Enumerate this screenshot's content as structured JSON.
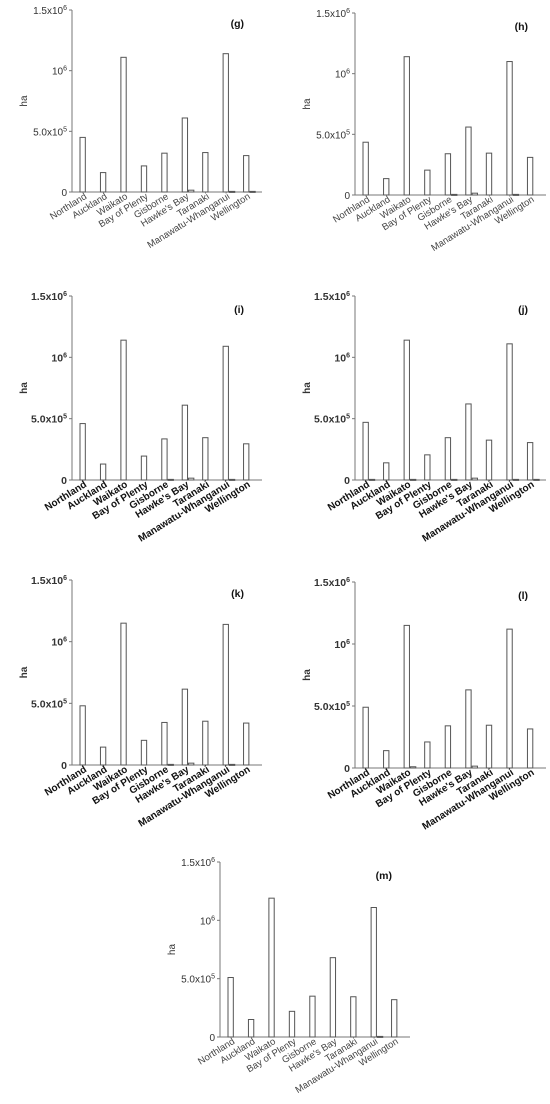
{
  "chart_data": [
    {
      "panel": "(g)",
      "type": "bar",
      "ylabel": "ha",
      "categories": [
        "Northland",
        "Auckland",
        "Waikato",
        "Bay of Plenty",
        "Gisborne",
        "Hawke's Bay",
        "Taranaki",
        "Manawatu-Whanganui",
        "Wellington"
      ],
      "yticks": [
        "0",
        "5.0x10",
        "10",
        "1.5x10"
      ],
      "ytick_sup": [
        "",
        "5",
        "6",
        "6"
      ],
      "ylim": [
        0,
        1500000
      ],
      "series": [
        {
          "values": [
            450000,
            160000,
            1110000,
            215000,
            320000,
            610000,
            325000,
            1140000,
            300000
          ]
        },
        {
          "values": [
            0,
            0,
            0,
            0,
            0,
            15000,
            0,
            5000,
            5000
          ]
        }
      ]
    },
    {
      "panel": "(h)",
      "type": "bar",
      "ylabel": "ha",
      "categories": [
        "Northland",
        "Auckland",
        "Waikato",
        "Bay of Plenty",
        "Gisborne",
        "Hawke's Bay",
        "Taranaki",
        "Manawatu-Whanganui",
        "Wellington"
      ],
      "yticks": [
        "0",
        "5.0x10",
        "10",
        "1.5x10"
      ],
      "ytick_sup": [
        "",
        "5",
        "6",
        "6"
      ],
      "ylim": [
        0,
        1500000
      ],
      "series": [
        {
          "values": [
            435000,
            135000,
            1140000,
            205000,
            340000,
            560000,
            345000,
            1100000,
            310000
          ]
        },
        {
          "values": [
            0,
            0,
            0,
            0,
            5000,
            15000,
            0,
            5000,
            0
          ]
        }
      ]
    },
    {
      "panel": "(i)",
      "type": "bar",
      "ylabel": "ha",
      "categories": [
        "Northland",
        "Auckland",
        "Waikato",
        "Bay of Plenty",
        "Gisborne",
        "Hawke's Bay",
        "Taranaki",
        "Manawatu-Whanganui",
        "Wellington"
      ],
      "yticks": [
        "0",
        "5.0x10",
        "10",
        "1.5x10"
      ],
      "ytick_sup": [
        "",
        "5",
        "6",
        "6"
      ],
      "ylim": [
        0,
        1500000
      ],
      "series": [
        {
          "values": [
            460000,
            130000,
            1140000,
            195000,
            335000,
            610000,
            345000,
            1090000,
            295000
          ]
        },
        {
          "values": [
            0,
            0,
            0,
            0,
            5000,
            15000,
            0,
            5000,
            0
          ]
        }
      ]
    },
    {
      "panel": "(j)",
      "type": "bar",
      "ylabel": "ha",
      "categories": [
        "Northland",
        "Auckland",
        "Waikato",
        "Bay of Plenty",
        "Gisborne",
        "Hawke's Bay",
        "Taranaki",
        "Manawatu-Whanganui",
        "Wellington"
      ],
      "yticks": [
        "0",
        "5.0x10",
        "10",
        "1.5x10"
      ],
      "ytick_sup": [
        "",
        "5",
        "6",
        "6"
      ],
      "ylim": [
        0,
        1500000
      ],
      "series": [
        {
          "values": [
            470000,
            140000,
            1140000,
            205000,
            345000,
            620000,
            325000,
            1110000,
            305000
          ]
        },
        {
          "values": [
            5000,
            0,
            5000,
            0,
            5000,
            15000,
            0,
            5000,
            5000
          ]
        }
      ]
    },
    {
      "panel": "(k)",
      "type": "bar",
      "ylabel": "ha",
      "categories": [
        "Northland",
        "Auckland",
        "Waikato",
        "Bay of Plenty",
        "Gisborne",
        "Hawke's Bay",
        "Taranaki",
        "Manawatu-Whanganui",
        "Wellington"
      ],
      "yticks": [
        "0",
        "5.0x10",
        "10",
        "1.5x10"
      ],
      "ytick_sup": [
        "",
        "5",
        "6",
        "6"
      ],
      "ylim": [
        0,
        1500000
      ],
      "series": [
        {
          "values": [
            480000,
            145000,
            1150000,
            200000,
            345000,
            615000,
            355000,
            1140000,
            340000
          ]
        },
        {
          "values": [
            0,
            0,
            0,
            0,
            5000,
            15000,
            0,
            5000,
            0
          ]
        }
      ]
    },
    {
      "panel": "(l)",
      "type": "bar",
      "ylabel": "ha",
      "categories": [
        "Northland",
        "Auckland",
        "Waikato",
        "Bay of Plenty",
        "Gisborne",
        "Hawke's Bay",
        "Taranaki",
        "Manawatu-Whanganui",
        "Wellington"
      ],
      "yticks": [
        "0",
        "5.0x10",
        "10",
        "1.5x10"
      ],
      "ytick_sup": [
        "",
        "5",
        "6",
        "6"
      ],
      "ylim": [
        0,
        1500000
      ],
      "series": [
        {
          "values": [
            490000,
            140000,
            1150000,
            210000,
            340000,
            630000,
            345000,
            1120000,
            315000
          ]
        },
        {
          "values": [
            0,
            0,
            10000,
            0,
            0,
            15000,
            0,
            0,
            0
          ]
        }
      ]
    },
    {
      "panel": "(m)",
      "type": "bar",
      "ylabel": "ha",
      "categories": [
        "Northland",
        "Auckland",
        "Waikato",
        "Bay of Plenty",
        "Gisborne",
        "Hawke's Bay",
        "Taranaki",
        "Manawatu-Whanganui",
        "Wellington"
      ],
      "yticks": [
        "0",
        "5.0x10",
        "10",
        "1.5x10"
      ],
      "ytick_sup": [
        "",
        "5",
        "6",
        "6"
      ],
      "ylim": [
        0,
        1500000
      ],
      "series": [
        {
          "values": [
            510000,
            150000,
            1190000,
            220000,
            350000,
            680000,
            345000,
            1110000,
            320000
          ]
        },
        {
          "values": [
            0,
            0,
            0,
            0,
            0,
            0,
            0,
            5000,
            0
          ]
        }
      ]
    }
  ]
}
